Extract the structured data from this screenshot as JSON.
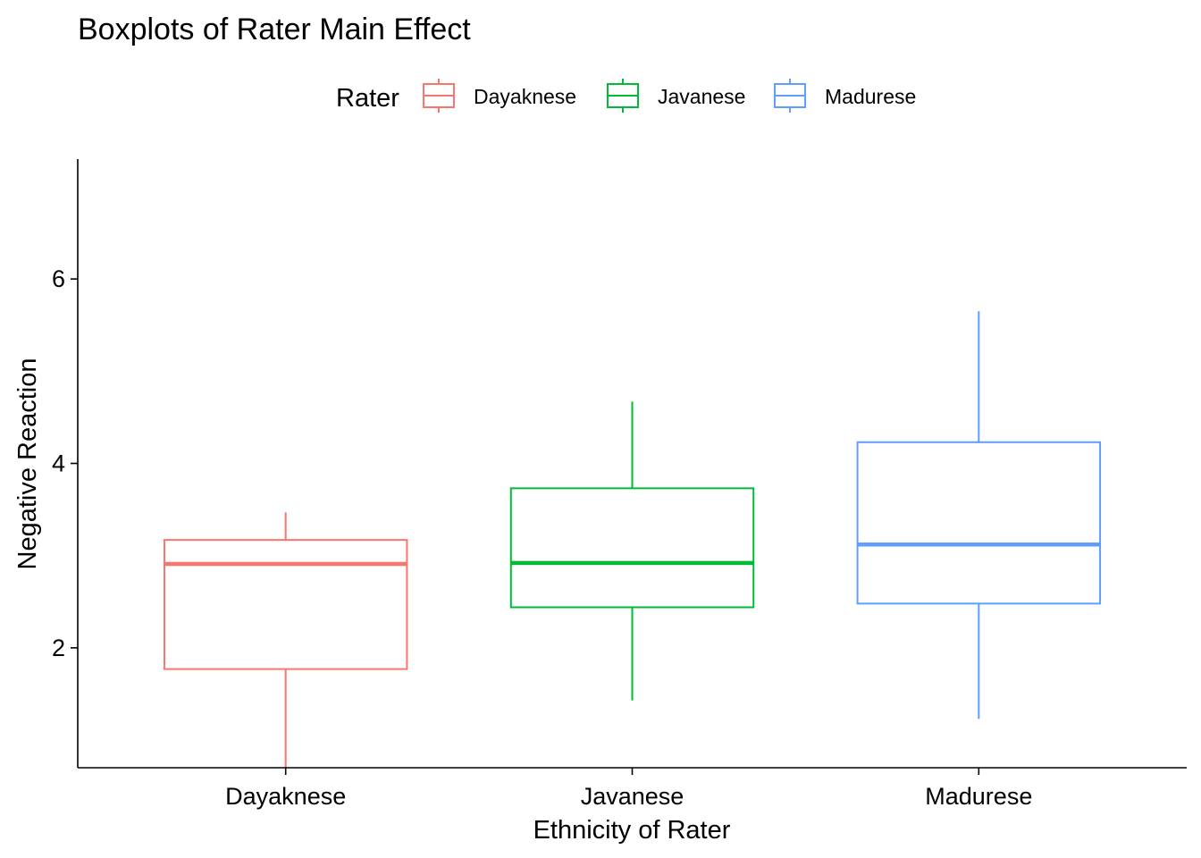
{
  "chart_data": {
    "type": "boxplot",
    "title": "Boxplots of Rater Main Effect",
    "xlabel": "Ethnicity of Rater",
    "ylabel": "Negative Reaction",
    "categories": [
      "Dayaknese",
      "Javanese",
      "Madurese"
    ],
    "ylim": [
      0.7,
      7.3
    ],
    "yticks": [
      2,
      4,
      6
    ],
    "grid": false,
    "legend": {
      "title": "Rater",
      "position": "top",
      "entries": [
        "Dayaknese",
        "Javanese",
        "Madurese"
      ]
    },
    "series": [
      {
        "name": "Dayaknese",
        "color": "#F8766D",
        "min": 0.7,
        "q1": 1.77,
        "median": 2.91,
        "q3": 3.17,
        "max": 3.47
      },
      {
        "name": "Javanese",
        "color": "#00BA38",
        "min": 1.43,
        "q1": 2.44,
        "median": 2.92,
        "q3": 3.73,
        "max": 4.67
      },
      {
        "name": "Madurese",
        "color": "#619CFF",
        "min": 1.23,
        "q1": 2.48,
        "median": 3.12,
        "q3": 4.23,
        "max": 5.65
      }
    ]
  }
}
